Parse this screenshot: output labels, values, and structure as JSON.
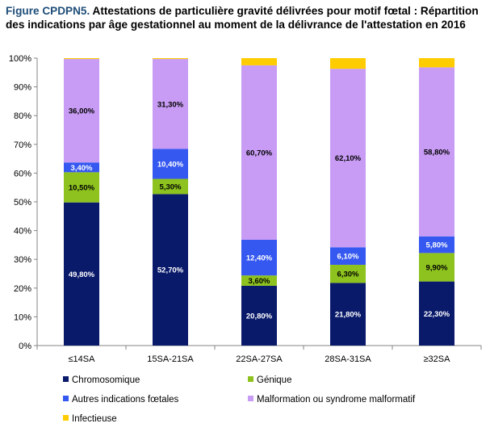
{
  "title": {
    "figure_label": "Figure CPDPN5.",
    "text": "Attestations de particulière gravité délivrées pour motif fœtal : Répartition des indications par âge gestationnel au moment de la délivrance de l'attestation en 2016"
  },
  "chart_data": {
    "type": "bar",
    "stacked": true,
    "categories": [
      "≤14SA",
      "15SA-21SA",
      "22SA-27SA",
      "28SA-31SA",
      "≥32SA"
    ],
    "ylim": [
      0,
      100
    ],
    "yticks": [
      0,
      10,
      20,
      30,
      40,
      50,
      60,
      70,
      80,
      90,
      100
    ],
    "ytick_suffix": "%",
    "series": [
      {
        "name": "Chromosomique",
        "color": "#0a1a6b",
        "label_color": "#ffffff",
        "values": [
          49.8,
          52.7,
          20.8,
          21.8,
          22.3
        ],
        "labels": [
          "49,80%",
          "52,70%",
          "20,80%",
          "21,80%",
          "22,30%"
        ]
      },
      {
        "name": "Génique",
        "color": "#8dc21f",
        "label_color": "#000000",
        "values": [
          10.5,
          5.3,
          3.6,
          6.3,
          9.9
        ],
        "labels": [
          "10,50%",
          "5,30%",
          "3,60%",
          "6,30%",
          "9,90%"
        ]
      },
      {
        "name": "Autres indications fœtales",
        "color": "#3558f0",
        "label_color": "#ffffff",
        "values": [
          3.4,
          10.4,
          12.4,
          6.1,
          5.8
        ],
        "labels": [
          "3,40%",
          "10,40%",
          "12,40%",
          "6,10%",
          "5,80%"
        ]
      },
      {
        "name": "Malformation ou syndrome malformatif",
        "color": "#c89cf4",
        "label_color": "#000000",
        "values": [
          36.0,
          31.3,
          60.7,
          62.1,
          58.8
        ],
        "labels": [
          "36,00%",
          "31,30%",
          "60,70%",
          "62,10%",
          "58,80%"
        ]
      },
      {
        "name": "Infectieuse",
        "color": "#ffcc00",
        "label_color": "#000000",
        "values": [
          0.3,
          0.3,
          2.5,
          3.7,
          3.2
        ],
        "labels": [
          "",
          "",
          "",
          "",
          ""
        ]
      }
    ],
    "grid": false,
    "legend_position": "bottom"
  }
}
